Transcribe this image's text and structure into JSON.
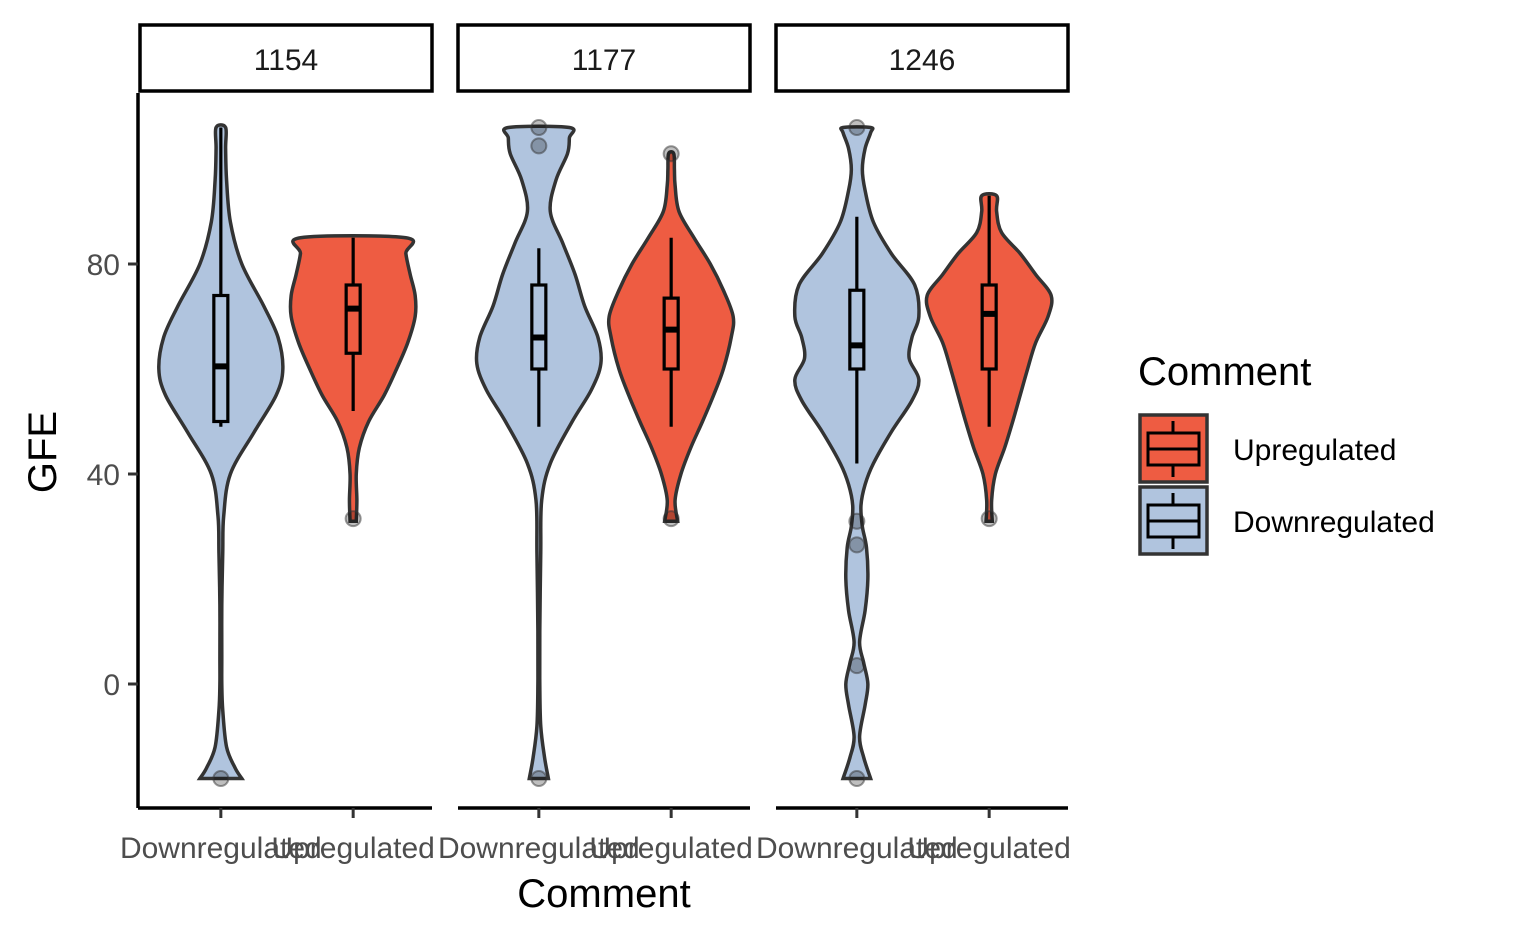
{
  "chart_data": {
    "type": "violin",
    "facet_variable": "",
    "facets": [
      "1154",
      "1177",
      "1246"
    ],
    "xlabel": "Comment",
    "ylabel": "GFE",
    "categories": [
      "Downregulated",
      "Upregulated"
    ],
    "ylim": [
      -24,
      108
    ],
    "yticks": [
      0,
      40,
      80
    ],
    "grid": false,
    "legend": {
      "title": "Comment",
      "position": "right",
      "entries": [
        {
          "label": "Upregulated",
          "color": "#EE5C42"
        },
        {
          "label": "Downregulated",
          "color": "#B0C4DE"
        }
      ]
    },
    "colors": {
      "Downregulated": "#B0C4DE",
      "Upregulated": "#EE5C42"
    },
    "panels": [
      {
        "facet": "1154",
        "groups": [
          {
            "category": "Downregulated",
            "min": -18,
            "max": 106,
            "box": {
              "whisker_low": 49,
              "q1": 50,
              "median": 60.5,
              "q3": 74,
              "whisker_high": 106
            },
            "density": [
              [
                -18,
                0.22
              ],
              [
                -16,
                0.15
              ],
              [
                -12,
                0.06
              ],
              [
                -5,
                0.02
              ],
              [
                0,
                0.01
              ],
              [
                5,
                0.01
              ],
              [
                15,
                0.01
              ],
              [
                25,
                0.02
              ],
              [
                32,
                0.03
              ],
              [
                40,
                0.1
              ],
              [
                48,
                0.35
              ],
              [
                55,
                0.58
              ],
              [
                60,
                0.65
              ],
              [
                66,
                0.6
              ],
              [
                72,
                0.45
              ],
              [
                80,
                0.22
              ],
              [
                88,
                0.1
              ],
              [
                96,
                0.06
              ],
              [
                102,
                0.05
              ],
              [
                106,
                0.05
              ]
            ],
            "outliers": [
              -18
            ]
          },
          {
            "category": "Upregulated",
            "min": 31,
            "max": 85,
            "box": {
              "whisker_low": 52,
              "q1": 63,
              "median": 71.5,
              "q3": 76,
              "whisker_high": 85
            },
            "density": [
              [
                31,
                0.05
              ],
              [
                35,
                0.06
              ],
              [
                40,
                0.05
              ],
              [
                45,
                0.1
              ],
              [
                50,
                0.25
              ],
              [
                55,
                0.5
              ],
              [
                60,
                0.7
              ],
              [
                65,
                0.88
              ],
              [
                70,
                1.0
              ],
              [
                74,
                1.0
              ],
              [
                78,
                0.92
              ],
              [
                82,
                0.85
              ],
              [
                85,
                0.85
              ]
            ],
            "outliers": [
              31.5
            ]
          }
        ]
      },
      {
        "facet": "1177",
        "groups": [
          {
            "category": "Downregulated",
            "min": -18,
            "max": 106,
            "box": {
              "whisker_low": 49,
              "q1": 60,
              "median": 66,
              "q3": 76,
              "whisker_high": 83
            },
            "density": [
              [
                -18,
                0.1
              ],
              [
                -14,
                0.06
              ],
              [
                -8,
                0.02
              ],
              [
                0,
                0.01
              ],
              [
                10,
                0.01
              ],
              [
                25,
                0.02
              ],
              [
                35,
                0.03
              ],
              [
                42,
                0.12
              ],
              [
                50,
                0.35
              ],
              [
                56,
                0.55
              ],
              [
                61,
                0.65
              ],
              [
                66,
                0.62
              ],
              [
                72,
                0.48
              ],
              [
                78,
                0.38
              ],
              [
                84,
                0.25
              ],
              [
                90,
                0.12
              ],
              [
                96,
                0.18
              ],
              [
                101,
                0.3
              ],
              [
                104,
                0.32
              ],
              [
                106,
                0.32
              ]
            ],
            "outliers": [
              -18,
              102.5,
              106
            ]
          },
          {
            "category": "Upregulated",
            "min": 31,
            "max": 101,
            "box": {
              "whisker_low": 49,
              "q1": 60,
              "median": 67.5,
              "q3": 73.5,
              "whisker_high": 85
            },
            "density": [
              [
                31,
                0.1
              ],
              [
                35,
                0.06
              ],
              [
                40,
                0.15
              ],
              [
                45,
                0.3
              ],
              [
                50,
                0.48
              ],
              [
                55,
                0.65
              ],
              [
                60,
                0.8
              ],
              [
                66,
                0.92
              ],
              [
                70,
                0.95
              ],
              [
                75,
                0.8
              ],
              [
                80,
                0.6
              ],
              [
                85,
                0.35
              ],
              [
                90,
                0.12
              ],
              [
                95,
                0.06
              ],
              [
                98,
                0.05
              ],
              [
                101,
                0.04
              ]
            ],
            "outliers": [
              31.5,
              101
            ]
          }
        ]
      },
      {
        "facet": "1246",
        "groups": [
          {
            "category": "Downregulated",
            "min": -18,
            "max": 106,
            "box": {
              "whisker_low": 42,
              "q1": 60,
              "median": 64.5,
              "q3": 75,
              "whisker_high": 89
            },
            "density": [
              [
                -18,
                0.1
              ],
              [
                -14,
                0.05
              ],
              [
                -10,
                0.02
              ],
              [
                -4,
                0.06
              ],
              [
                0,
                0.08
              ],
              [
                4,
                0.05
              ],
              [
                8,
                0.02
              ],
              [
                14,
                0.06
              ],
              [
                20,
                0.08
              ],
              [
                26,
                0.07
              ],
              [
                30,
                0.04
              ],
              [
                34,
                0.03
              ],
              [
                38,
                0.06
              ],
              [
                42,
                0.12
              ],
              [
                48,
                0.25
              ],
              [
                54,
                0.4
              ],
              [
                58,
                0.45
              ],
              [
                62,
                0.38
              ],
              [
                66,
                0.4
              ],
              [
                70,
                0.45
              ],
              [
                76,
                0.42
              ],
              [
                82,
                0.25
              ],
              [
                88,
                0.12
              ],
              [
                94,
                0.06
              ],
              [
                98,
                0.04
              ],
              [
                102,
                0.06
              ],
              [
                105,
                0.1
              ],
              [
                106,
                0.1
              ]
            ],
            "outliers": [
              -18,
              3.5,
              26.5,
              31,
              106
            ]
          },
          {
            "category": "Upregulated",
            "min": 31,
            "max": 93,
            "box": {
              "whisker_low": 49,
              "q1": 60,
              "median": 70.5,
              "q3": 76,
              "whisker_high": 93
            },
            "density": [
              [
                31,
                0.05
              ],
              [
                35,
                0.04
              ],
              [
                40,
                0.1
              ],
              [
                45,
                0.25
              ],
              [
                50,
                0.38
              ],
              [
                55,
                0.5
              ],
              [
                60,
                0.62
              ],
              [
                65,
                0.75
              ],
              [
                70,
                0.95
              ],
              [
                74,
                1.0
              ],
              [
                78,
                0.75
              ],
              [
                82,
                0.5
              ],
              [
                86,
                0.2
              ],
              [
                90,
                0.12
              ],
              [
                93,
                0.12
              ]
            ],
            "outliers": [
              31.5
            ]
          }
        ]
      }
    ]
  }
}
